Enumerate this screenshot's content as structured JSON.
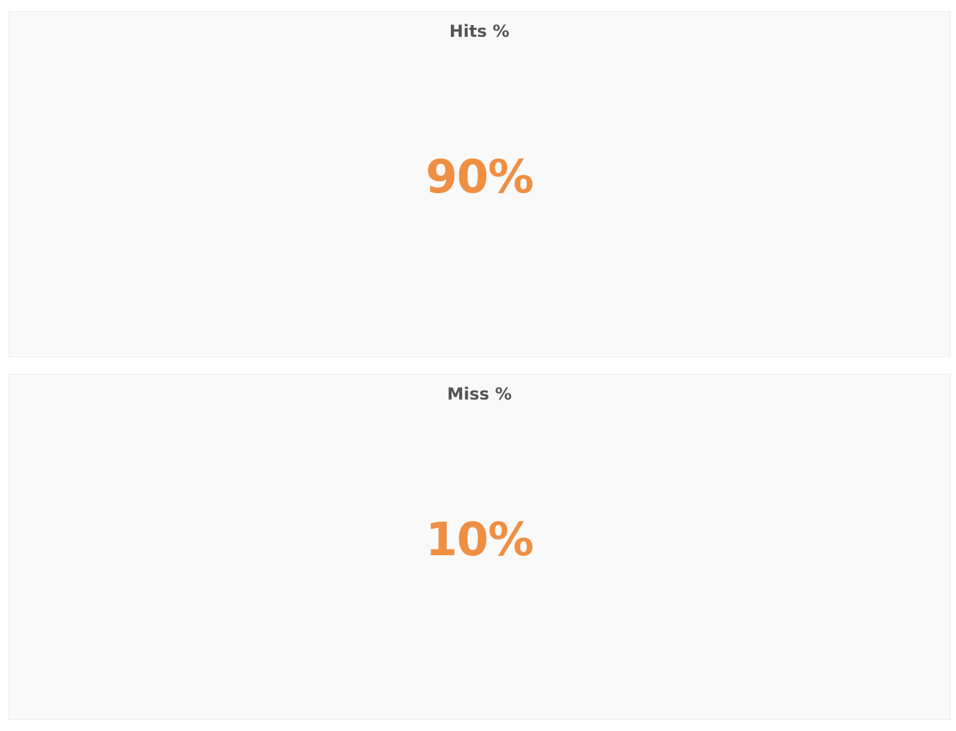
{
  "accent_color": "#ef8f43",
  "title_color": "#555555",
  "panels": [
    {
      "title": "Hits %",
      "value": "90%"
    },
    {
      "title": "Miss %",
      "value": "10%"
    }
  ]
}
